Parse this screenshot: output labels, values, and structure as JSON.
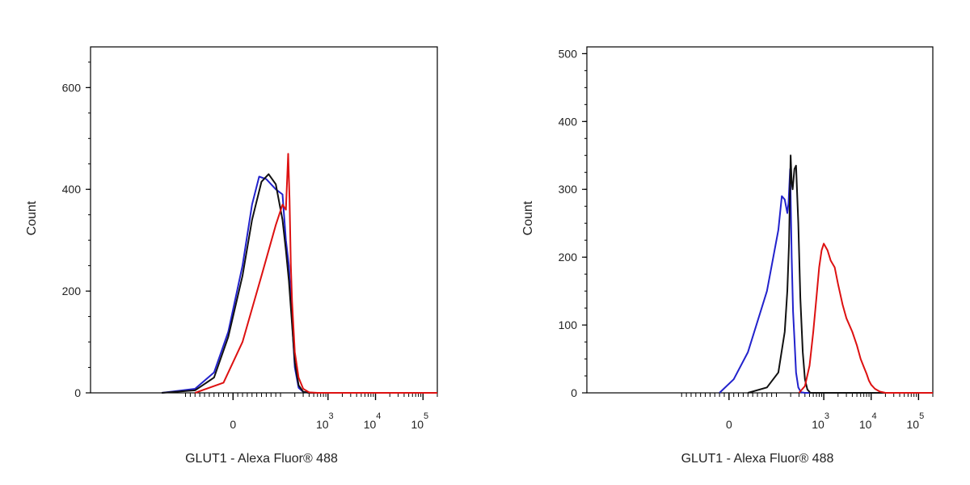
{
  "chart_data": [
    {
      "type": "line",
      "panel": "left",
      "xlabel": "GLUT1 - Alexa Fluor® 488",
      "ylabel": "Count",
      "x_scale": "biexponential",
      "xlim": [
        -300,
        200000
      ],
      "ylim": [
        0,
        680
      ],
      "y_ticks": [
        0,
        200,
        400,
        600
      ],
      "x_ticks": [
        {
          "value": 0,
          "label": "0",
          "exp": ""
        },
        {
          "value": 1000,
          "label": "10",
          "exp": "3"
        },
        {
          "value": 10000,
          "label": "10",
          "exp": "4"
        },
        {
          "value": 100000,
          "label": "10",
          "exp": "5"
        }
      ],
      "grid": false,
      "legend": "none",
      "series": [
        {
          "color": "#2222cc",
          "x": [
            -150,
            -80,
            -40,
            -10,
            20,
            40,
            55,
            70,
            90,
            110,
            130,
            150,
            170,
            200,
            240,
            300,
            400,
            1000,
            200000
          ],
          "y": [
            0,
            8,
            40,
            120,
            250,
            370,
            425,
            420,
            400,
            390,
            300,
            250,
            160,
            50,
            10,
            2,
            0,
            0,
            0
          ]
        },
        {
          "color": "#111111",
          "x": [
            -150,
            -80,
            -40,
            -10,
            20,
            40,
            60,
            75,
            90,
            110,
            130,
            150,
            170,
            200,
            240,
            300,
            400,
            1000,
            200000
          ],
          "y": [
            0,
            5,
            30,
            110,
            230,
            340,
            415,
            430,
            410,
            340,
            280,
            220,
            150,
            60,
            15,
            2,
            0,
            0,
            0
          ]
        },
        {
          "color": "#dd1111",
          "x": [
            -80,
            -20,
            20,
            60,
            90,
            110,
            130,
            145,
            155,
            165,
            175,
            200,
            240,
            300,
            400,
            600,
            1000,
            200000
          ],
          "y": [
            0,
            20,
            100,
            230,
            330,
            370,
            360,
            470,
            380,
            250,
            180,
            80,
            30,
            8,
            1,
            0,
            0,
            0
          ]
        }
      ]
    },
    {
      "type": "line",
      "panel": "right",
      "xlabel": "GLUT1 - Alexa Fluor® 488",
      "ylabel": "Count",
      "x_scale": "biexponential",
      "xlim": [
        -300,
        200000
      ],
      "ylim": [
        0,
        510
      ],
      "y_ticks": [
        0,
        100,
        200,
        300,
        400,
        500
      ],
      "x_ticks": [
        {
          "value": 0,
          "label": "0",
          "exp": ""
        },
        {
          "value": 1000,
          "label": "10",
          "exp": "3"
        },
        {
          "value": 10000,
          "label": "10",
          "exp": "4"
        },
        {
          "value": 100000,
          "label": "10",
          "exp": "5"
        }
      ],
      "grid": false,
      "legend": "none",
      "series": [
        {
          "color": "#2222cc",
          "x": [
            -20,
            10,
            40,
            80,
            110,
            130,
            150,
            170,
            180,
            195,
            210,
            225,
            240,
            260,
            290,
            330,
            400,
            1000,
            200000
          ],
          "y": [
            0,
            20,
            60,
            150,
            240,
            290,
            285,
            265,
            280,
            330,
            200,
            120,
            80,
            30,
            8,
            1,
            0,
            0,
            0
          ]
        },
        {
          "color": "#111111",
          "x": [
            40,
            80,
            110,
            150,
            170,
            185,
            200,
            210,
            220,
            240,
            260,
            290,
            320,
            360,
            400,
            450,
            520,
            1000,
            200000
          ],
          "y": [
            0,
            8,
            30,
            90,
            150,
            220,
            350,
            310,
            300,
            330,
            335,
            250,
            140,
            60,
            20,
            5,
            0,
            0,
            0
          ]
        },
        {
          "color": "#dd1111",
          "x": [
            300,
            400,
            500,
            600,
            700,
            800,
            900,
            1000,
            1200,
            1400,
            1700,
            2000,
            2500,
            3000,
            4000,
            5000,
            6000,
            7000,
            8000,
            9000,
            10000,
            12000,
            15000,
            20000,
            200000
          ],
          "y": [
            0,
            10,
            40,
            90,
            140,
            185,
            210,
            220,
            210,
            195,
            185,
            160,
            130,
            110,
            90,
            70,
            50,
            38,
            28,
            18,
            12,
            6,
            2,
            0,
            0
          ]
        }
      ]
    }
  ]
}
